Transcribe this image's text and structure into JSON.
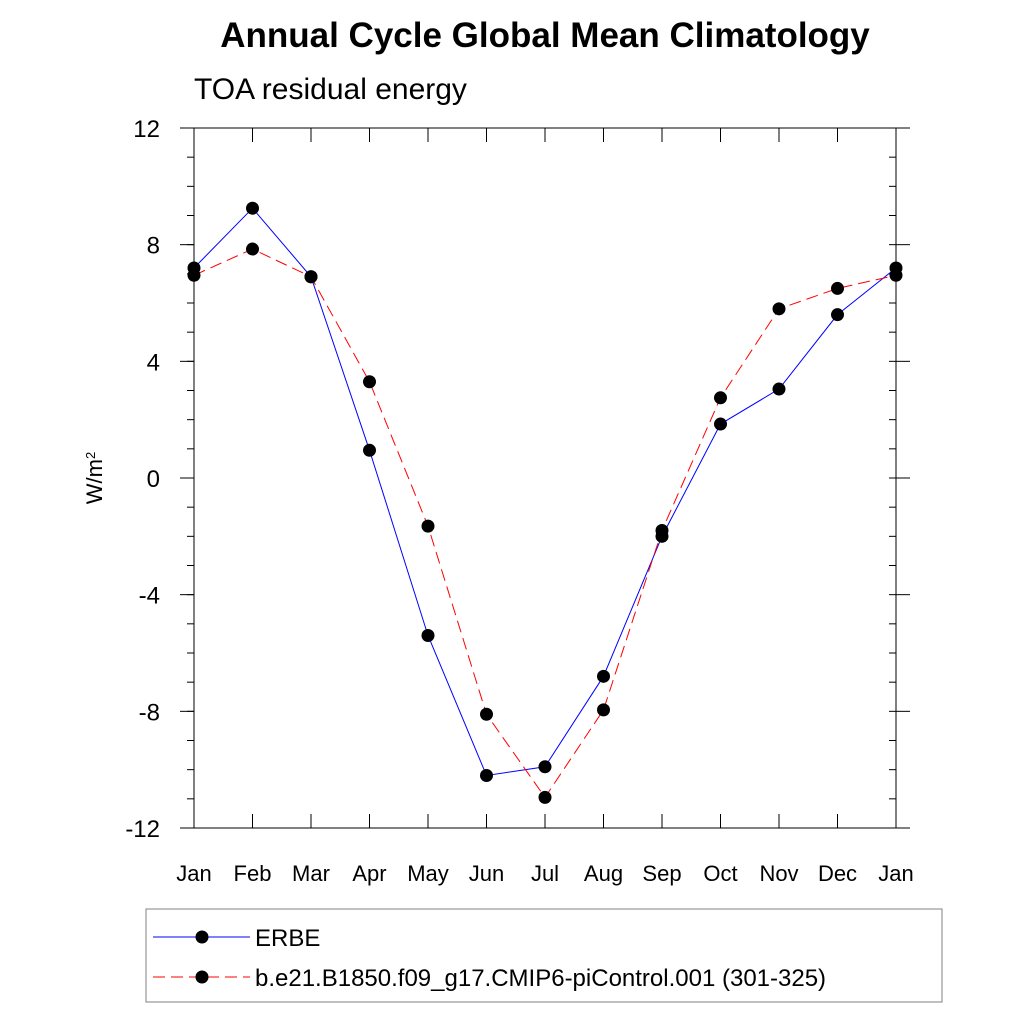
{
  "chart_data": {
    "type": "line",
    "title": "Annual Cycle Global Mean Climatology",
    "subtitle": "TOA residual energy",
    "xlabel": "",
    "ylabel": "W/m",
    "ylabel_superscript": "2",
    "categories": [
      "Jan",
      "Feb",
      "Mar",
      "Apr",
      "May",
      "Jun",
      "Jul",
      "Aug",
      "Sep",
      "Oct",
      "Nov",
      "Dec",
      "Jan"
    ],
    "ylim": [
      -12,
      12
    ],
    "yticks": [
      12,
      8,
      4,
      0,
      -4,
      -8,
      -12
    ],
    "ytick_labels": [
      "12",
      "8",
      "4",
      "0",
      "-4",
      "-8",
      "-12"
    ],
    "yminor_step": 1,
    "grid": false,
    "legend_position": "bottom",
    "series": [
      {
        "name": "ERBE",
        "color": "#0000ff",
        "dash": "solid",
        "marker": "filled-circle",
        "values": [
          7.2,
          9.25,
          6.9,
          0.95,
          -5.4,
          -10.2,
          -9.9,
          -6.8,
          -2.0,
          1.85,
          3.05,
          5.6,
          7.2
        ]
      },
      {
        "name": "b.e21.B1850.f09_g17.CMIP6-piControl.001 (301-325)",
        "color": "#ff0000",
        "dash": "dashed",
        "marker": "filled-circle",
        "values": [
          6.95,
          7.85,
          6.9,
          3.3,
          -1.65,
          -8.1,
          -10.95,
          -7.95,
          -1.8,
          2.75,
          5.8,
          6.5,
          6.95
        ]
      }
    ]
  }
}
